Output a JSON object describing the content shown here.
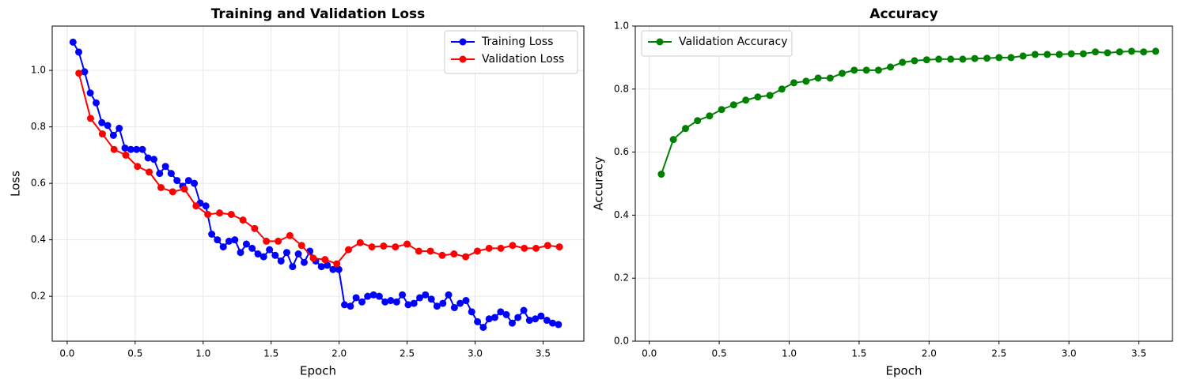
{
  "chart_data": [
    {
      "type": "line",
      "title": "Training and Validation Loss",
      "xlabel": "Epoch",
      "ylabel": "Loss",
      "xlim": [
        -0.11,
        3.8
      ],
      "ylim": [
        0.041,
        1.157
      ],
      "xticks": [
        {
          "value": 0,
          "label": "0.0"
        },
        0.5,
        {
          "value": 1,
          "label": "1.0"
        },
        1.5,
        {
          "value": 2,
          "label": "2.0"
        },
        2.5,
        {
          "value": 3,
          "label": "3.0"
        },
        3.5
      ],
      "yticks": [
        0.2,
        0.4,
        0.6,
        0.8,
        {
          "value": 1,
          "label": "1.0"
        }
      ],
      "grid": true,
      "legend": "upper right",
      "series": [
        {
          "name": "Training Loss",
          "color": "#0000ff",
          "x": [
            0.043,
            0.085,
            0.128,
            0.17,
            0.213,
            0.255,
            0.298,
            0.34,
            0.383,
            0.425,
            0.468,
            0.51,
            0.553,
            0.595,
            0.638,
            0.68,
            0.723,
            0.765,
            0.808,
            0.85,
            0.893,
            0.935,
            0.978,
            1.02,
            1.063,
            1.105,
            1.148,
            1.19,
            1.233,
            1.275,
            1.318,
            1.36,
            1.403,
            1.445,
            1.488,
            1.53,
            1.573,
            1.615,
            1.658,
            1.7,
            1.743,
            1.785,
            1.828,
            1.87,
            1.913,
            1.955,
            1.998,
            2.04,
            2.083,
            2.125,
            2.168,
            2.21,
            2.253,
            2.295,
            2.338,
            2.38,
            2.423,
            2.465,
            2.508,
            2.55,
            2.593,
            2.635,
            2.678,
            2.72,
            2.763,
            2.805,
            2.848,
            2.89,
            2.933,
            2.975,
            3.018,
            3.06,
            3.103,
            3.145,
            3.188,
            3.23,
            3.273,
            3.315,
            3.358,
            3.4,
            3.443,
            3.485,
            3.528,
            3.57,
            3.613
          ],
          "values": [
            1.1,
            1.065,
            0.995,
            0.92,
            0.885,
            0.815,
            0.805,
            0.77,
            0.795,
            0.725,
            0.72,
            0.72,
            0.72,
            0.69,
            0.685,
            0.635,
            0.66,
            0.635,
            0.61,
            0.59,
            0.61,
            0.6,
            0.53,
            0.52,
            0.42,
            0.4,
            0.375,
            0.395,
            0.4,
            0.355,
            0.385,
            0.37,
            0.35,
            0.34,
            0.365,
            0.345,
            0.325,
            0.355,
            0.305,
            0.35,
            0.32,
            0.36,
            0.325,
            0.305,
            0.31,
            0.295,
            0.295,
            0.17,
            0.165,
            0.195,
            0.18,
            0.2,
            0.205,
            0.2,
            0.18,
            0.185,
            0.18,
            0.205,
            0.17,
            0.175,
            0.195,
            0.205,
            0.19,
            0.165,
            0.175,
            0.205,
            0.16,
            0.175,
            0.185,
            0.145,
            0.11,
            0.09,
            0.12,
            0.125,
            0.145,
            0.135,
            0.105,
            0.125,
            0.15,
            0.115,
            0.12,
            0.13,
            0.115,
            0.105,
            0.1
          ]
        },
        {
          "name": "Validation Loss",
          "color": "#ff0000",
          "x": [
            0.086,
            0.172,
            0.259,
            0.345,
            0.431,
            0.517,
            0.603,
            0.69,
            0.776,
            0.862,
            0.948,
            1.034,
            1.121,
            1.207,
            1.293,
            1.379,
            1.465,
            1.552,
            1.638,
            1.724,
            1.81,
            1.896,
            1.983,
            2.069,
            2.155,
            2.241,
            2.327,
            2.414,
            2.5,
            2.586,
            2.672,
            2.758,
            2.845,
            2.931,
            3.017,
            3.103,
            3.189,
            3.276,
            3.362,
            3.448,
            3.534,
            3.62
          ],
          "values": [
            0.99,
            0.83,
            0.775,
            0.72,
            0.7,
            0.66,
            0.64,
            0.585,
            0.57,
            0.58,
            0.52,
            0.49,
            0.495,
            0.49,
            0.47,
            0.44,
            0.395,
            0.395,
            0.415,
            0.38,
            0.335,
            0.33,
            0.315,
            0.365,
            0.39,
            0.375,
            0.378,
            0.375,
            0.385,
            0.36,
            0.36,
            0.345,
            0.35,
            0.34,
            0.36,
            0.37,
            0.37,
            0.38,
            0.37,
            0.37,
            0.38,
            0.375
          ]
        }
      ]
    },
    {
      "type": "line",
      "title": "Accuracy",
      "xlabel": "Epoch",
      "ylabel": "Accuracy",
      "xlim": [
        -0.1,
        3.74
      ],
      "ylim": [
        0,
        1
      ],
      "xticks": [
        {
          "value": 0,
          "label": "0.0"
        },
        0.5,
        {
          "value": 1,
          "label": "1.0"
        },
        1.5,
        {
          "value": 2,
          "label": "2.0"
        },
        2.5,
        {
          "value": 3,
          "label": "3.0"
        },
        3.5
      ],
      "yticks": [
        {
          "value": 0,
          "label": "0.0"
        },
        0.2,
        0.4,
        0.6,
        0.8,
        {
          "value": 1,
          "label": "1.0"
        }
      ],
      "grid": true,
      "legend": "upper left",
      "series": [
        {
          "name": "Validation Accuracy",
          "color": "#008000",
          "x": [
            0.086,
            0.172,
            0.259,
            0.345,
            0.431,
            0.517,
            0.603,
            0.69,
            0.776,
            0.862,
            0.948,
            1.034,
            1.121,
            1.207,
            1.293,
            1.379,
            1.465,
            1.552,
            1.638,
            1.724,
            1.81,
            1.896,
            1.983,
            2.069,
            2.155,
            2.241,
            2.327,
            2.414,
            2.5,
            2.586,
            2.672,
            2.758,
            2.845,
            2.931,
            3.017,
            3.103,
            3.189,
            3.276,
            3.362,
            3.448,
            3.534,
            3.62
          ],
          "values": [
            0.53,
            0.64,
            0.675,
            0.7,
            0.715,
            0.735,
            0.75,
            0.765,
            0.775,
            0.78,
            0.8,
            0.82,
            0.825,
            0.835,
            0.835,
            0.85,
            0.86,
            0.86,
            0.86,
            0.87,
            0.885,
            0.89,
            0.893,
            0.895,
            0.895,
            0.895,
            0.897,
            0.898,
            0.9,
            0.9,
            0.905,
            0.91,
            0.91,
            0.91,
            0.912,
            0.912,
            0.918,
            0.915,
            0.918,
            0.92,
            0.918,
            0.92
          ]
        }
      ]
    }
  ]
}
